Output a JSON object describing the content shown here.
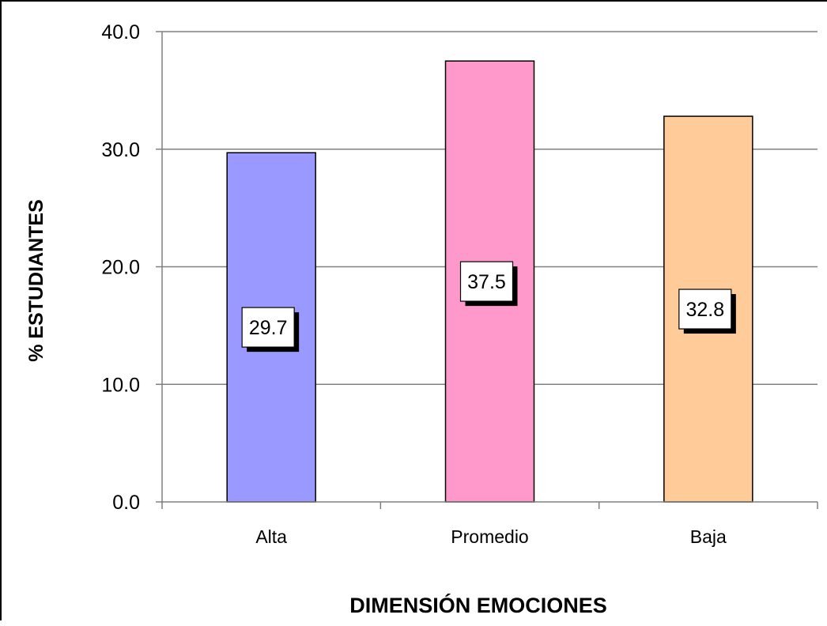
{
  "chart_data": {
    "type": "bar",
    "title": "",
    "xlabel": "DIMENSIÓN EMOCIONES",
    "ylabel": "% ESTUDIANTES",
    "categories": [
      "Alta",
      "Promedio",
      "Baja"
    ],
    "values": [
      29.7,
      37.5,
      32.8
    ],
    "data_labels": [
      "29.7",
      "37.5",
      "32.8"
    ],
    "bar_colors": [
      "#9999ff",
      "#ff99cc",
      "#ffcc99"
    ],
    "ylim": [
      0,
      40
    ],
    "yticks": [
      0,
      10,
      20,
      30,
      40
    ],
    "ytick_labels": [
      "0.0",
      "10.0",
      "20.0",
      "30.0",
      "40.0"
    ],
    "grid": true,
    "gridline_color": "#808080",
    "legend": "none"
  }
}
